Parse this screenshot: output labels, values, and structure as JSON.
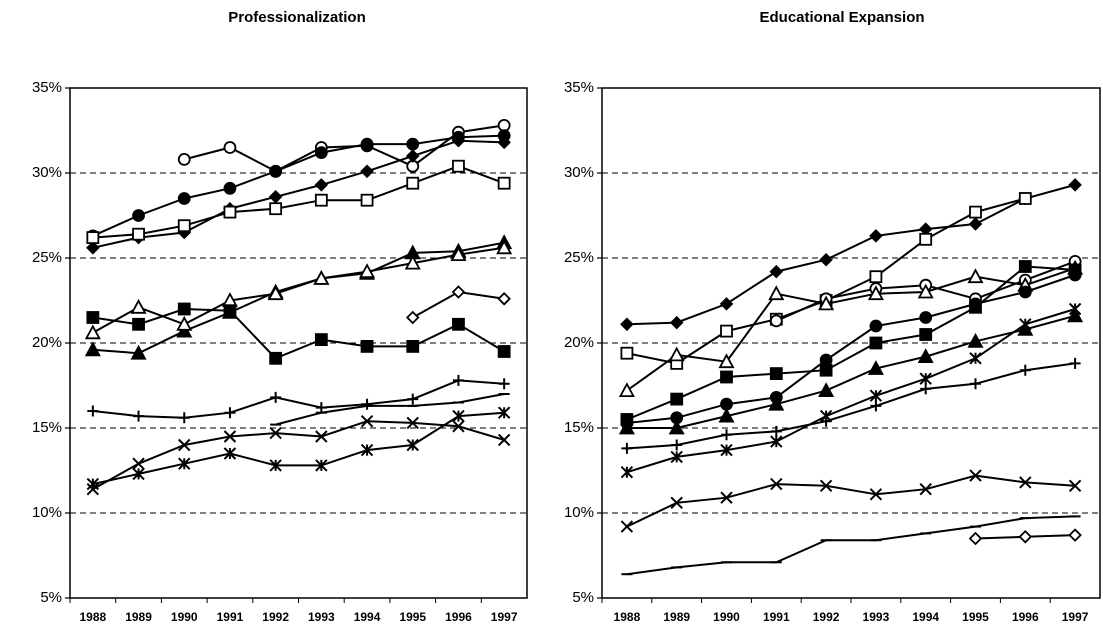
{
  "chart_data": [
    {
      "type": "line",
      "title": "Professionalization",
      "categories": [
        "1988",
        "1989",
        "1990",
        "1991",
        "1992",
        "1993",
        "1994",
        "1995",
        "1996",
        "1997"
      ],
      "ylim": [
        5,
        35
      ],
      "yticks": [
        {
          "value": 5,
          "label": "5%"
        },
        {
          "value": 10,
          "label": "10%"
        },
        {
          "value": 15,
          "label": "15%"
        },
        {
          "value": 20,
          "label": "20%"
        },
        {
          "value": 25,
          "label": "25%"
        },
        {
          "value": 30,
          "label": "30%"
        },
        {
          "value": 35,
          "label": "35%"
        }
      ],
      "grid": "dashed",
      "series": [
        {
          "marker": "circle-open",
          "color": "#000000",
          "values": [
            null,
            null,
            30.8,
            31.5,
            30.1,
            31.5,
            31.6,
            30.4,
            32.4,
            32.8
          ]
        },
        {
          "marker": "circle",
          "color": "#000000",
          "values": [
            26.3,
            27.5,
            28.5,
            29.1,
            30.1,
            31.2,
            31.7,
            31.7,
            32.1,
            32.2
          ]
        },
        {
          "marker": "diamond",
          "color": "#000000",
          "values": [
            25.6,
            26.2,
            26.5,
            27.9,
            28.6,
            29.3,
            30.1,
            31.0,
            31.9,
            31.8
          ]
        },
        {
          "marker": "square-open",
          "color": "#000000",
          "values": [
            26.2,
            26.4,
            26.9,
            27.7,
            27.9,
            28.4,
            28.4,
            29.4,
            30.4,
            29.4
          ]
        },
        {
          "marker": "triangle",
          "color": "#000000",
          "values": [
            19.6,
            19.4,
            20.7,
            21.8,
            23.0,
            23.8,
            24.1,
            25.3,
            25.4,
            25.9
          ]
        },
        {
          "marker": "triangle-open",
          "color": "#000000",
          "values": [
            20.6,
            22.1,
            21.1,
            22.5,
            22.9,
            23.8,
            24.2,
            24.7,
            25.2,
            25.6
          ]
        },
        {
          "marker": "square",
          "color": "#000000",
          "values": [
            21.5,
            21.1,
            22.0,
            21.9,
            19.1,
            20.2,
            19.8,
            19.8,
            21.1,
            19.5
          ]
        },
        {
          "marker": "diamond-open",
          "color": "#000000",
          "values": [
            null,
            null,
            null,
            null,
            null,
            null,
            null,
            21.5,
            23.0,
            22.6
          ]
        },
        {
          "marker": "plus",
          "color": "#000000",
          "values": [
            16.0,
            15.7,
            15.6,
            15.9,
            16.8,
            16.2,
            16.4,
            16.7,
            17.8,
            17.6
          ]
        },
        {
          "marker": "dash",
          "color": "#000000",
          "values": [
            null,
            null,
            null,
            null,
            15.2,
            15.9,
            16.3,
            16.3,
            16.5,
            17.0
          ]
        },
        {
          "marker": "x",
          "color": "#000000",
          "values": [
            11.4,
            12.9,
            14.0,
            14.5,
            14.7,
            14.5,
            15.4,
            15.3,
            15.1,
            14.3
          ]
        },
        {
          "marker": "asterisk",
          "color": "#000000",
          "values": [
            11.7,
            12.3,
            12.9,
            13.5,
            12.8,
            12.8,
            13.7,
            14.0,
            15.7,
            15.9
          ]
        }
      ]
    },
    {
      "type": "line",
      "title": "Educational Expansion",
      "categories": [
        "1988",
        "1989",
        "1990",
        "1991",
        "1992",
        "1993",
        "1994",
        "1995",
        "1996",
        "1997"
      ],
      "ylim": [
        5,
        35
      ],
      "yticks": [
        {
          "value": 5,
          "label": "5%"
        },
        {
          "value": 10,
          "label": "10%"
        },
        {
          "value": 15,
          "label": "15%"
        },
        {
          "value": 20,
          "label": "20%"
        },
        {
          "value": 25,
          "label": "25%"
        },
        {
          "value": 30,
          "label": "30%"
        },
        {
          "value": 35,
          "label": "35%"
        }
      ],
      "grid": "dashed",
      "series": [
        {
          "marker": "diamond",
          "color": "#000000",
          "values": [
            21.1,
            21.2,
            22.3,
            24.2,
            24.9,
            26.3,
            26.7,
            27.0,
            28.5,
            29.3
          ]
        },
        {
          "marker": "square-open",
          "color": "#000000",
          "values": [
            19.4,
            18.8,
            20.7,
            21.4,
            22.5,
            23.9,
            26.1,
            27.7,
            28.5,
            null
          ]
        },
        {
          "marker": "circle-open",
          "color": "#000000",
          "values": [
            null,
            null,
            null,
            21.3,
            22.6,
            23.2,
            23.4,
            22.6,
            23.7,
            24.8
          ]
        },
        {
          "marker": "triangle-open",
          "color": "#000000",
          "values": [
            17.2,
            19.3,
            18.9,
            22.9,
            22.3,
            22.9,
            23.0,
            23.9,
            23.4,
            24.4
          ]
        },
        {
          "marker": "square",
          "color": "#000000",
          "values": [
            15.5,
            16.7,
            18.0,
            18.2,
            18.4,
            20.0,
            20.5,
            22.1,
            24.5,
            24.3
          ]
        },
        {
          "marker": "circle",
          "color": "#000000",
          "values": [
            15.3,
            15.6,
            16.4,
            16.8,
            19.0,
            21.0,
            21.5,
            22.3,
            23.0,
            24.0
          ]
        },
        {
          "marker": "triangle",
          "color": "#000000",
          "values": [
            15.0,
            15.0,
            15.7,
            16.4,
            17.2,
            18.5,
            19.2,
            20.1,
            20.8,
            21.6
          ]
        },
        {
          "marker": "asterisk",
          "color": "#000000",
          "values": [
            12.4,
            13.3,
            13.7,
            14.2,
            15.7,
            16.9,
            17.9,
            19.1,
            21.1,
            22.0
          ]
        },
        {
          "marker": "plus",
          "color": "#000000",
          "values": [
            13.8,
            14.0,
            14.6,
            14.8,
            15.4,
            16.3,
            17.3,
            17.6,
            18.4,
            18.8
          ]
        },
        {
          "marker": "x",
          "color": "#000000",
          "values": [
            9.2,
            10.6,
            10.9,
            11.7,
            11.6,
            11.1,
            11.4,
            12.2,
            11.8,
            11.6
          ]
        },
        {
          "marker": "dash",
          "color": "#000000",
          "values": [
            6.4,
            6.8,
            7.1,
            7.1,
            8.4,
            8.4,
            8.8,
            9.2,
            9.7,
            9.8
          ]
        },
        {
          "marker": "diamond-open",
          "color": "#000000",
          "values": [
            null,
            null,
            null,
            null,
            null,
            null,
            null,
            8.5,
            8.6,
            8.7
          ]
        }
      ]
    }
  ]
}
